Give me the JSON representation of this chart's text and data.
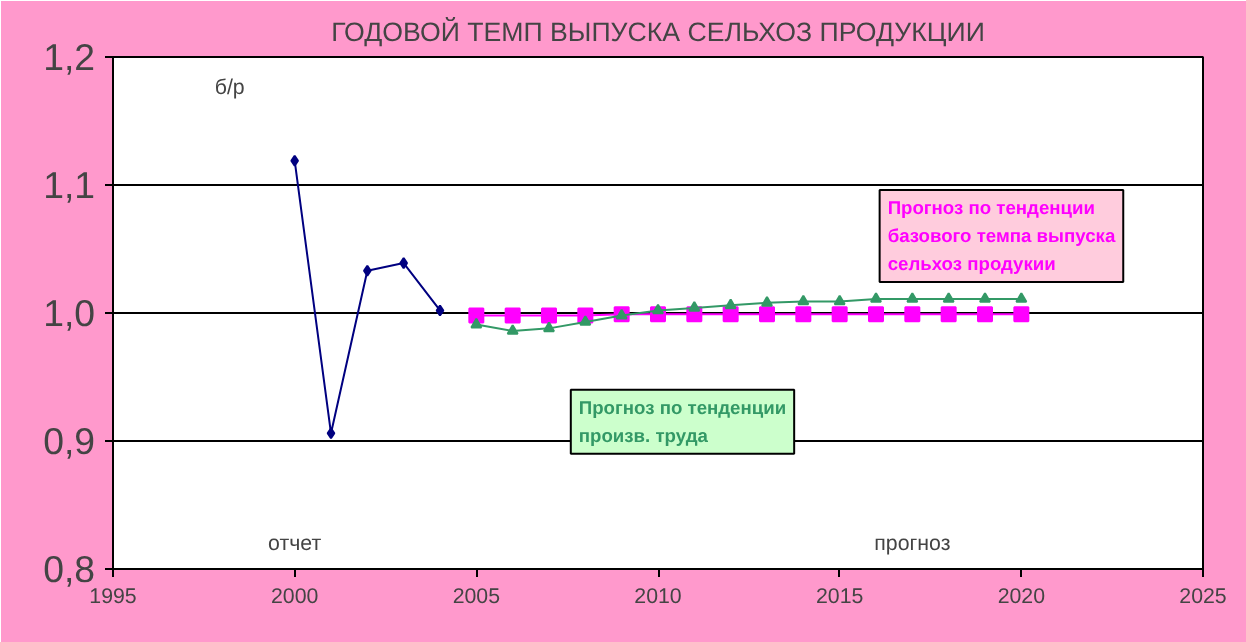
{
  "chart_data": {
    "type": "line",
    "title": "ГОДОВОЙ ТЕМП ВЫПУСКА СЕЛЬХОЗ ПРОДУКЦИИ",
    "ylabel": "б/р",
    "annotations": [
      "отчет",
      "прогноз"
    ],
    "series": [
      {
        "color": "#000080",
        "marker": "diamond",
        "x": [
          2000,
          2001,
          2002,
          2003,
          2004
        ],
        "values": [
          1.119,
          0.906,
          1.033,
          1.039,
          1.002
        ]
      },
      {
        "name": "Прогноз по тенденции базового темпа выпуска сельхоз продукии",
        "color": "#ff00ff",
        "marker": "square",
        "x": [
          2005,
          2006,
          2007,
          2008,
          2009,
          2010,
          2011,
          2012,
          2013,
          2014,
          2015,
          2016,
          2017,
          2018,
          2019,
          2020
        ],
        "values": [
          0.998,
          0.998,
          0.998,
          0.998,
          0.999,
          0.999,
          0.999,
          0.999,
          0.999,
          0.999,
          0.999,
          0.999,
          0.999,
          0.999,
          0.999,
          0.999
        ]
      },
      {
        "name": "Прогноз по тенденции произв. труда",
        "color": "#339966",
        "marker": "triangle",
        "x": [
          2005,
          2006,
          2007,
          2008,
          2009,
          2010,
          2011,
          2012,
          2013,
          2014,
          2015,
          2016,
          2017,
          2018,
          2019,
          2020
        ],
        "values": [
          0.991,
          0.986,
          0.988,
          0.993,
          0.998,
          1.002,
          1.004,
          1.006,
          1.008,
          1.009,
          1.009,
          1.011,
          1.011,
          1.011,
          1.011,
          1.011
        ]
      }
    ],
    "xlim": [
      1995,
      2025
    ],
    "xticks": [
      1995,
      2000,
      2005,
      2010,
      2015,
      2020,
      2025
    ],
    "ylim": [
      0.8,
      1.2
    ],
    "yticks": [
      {
        "value": 0.8,
        "label": "0,8"
      },
      {
        "value": 0.9,
        "label": "0,9"
      },
      {
        "value": 1.0,
        "label": "1,0"
      },
      {
        "value": 1.1,
        "label": "1,1"
      },
      {
        "value": 1.2,
        "label": "1,2"
      }
    ],
    "grid": "y",
    "legend": false
  }
}
